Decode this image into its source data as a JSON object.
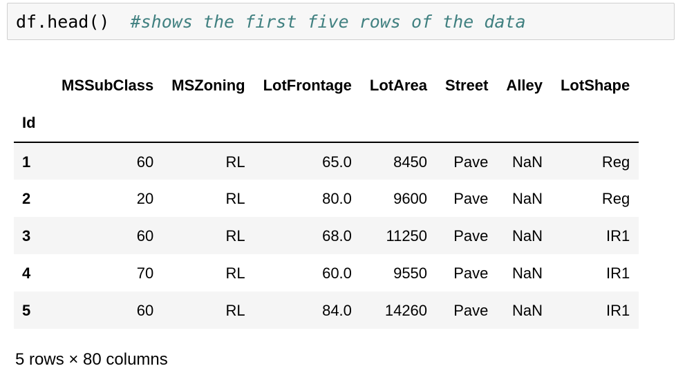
{
  "code_cell": {
    "code": "df.head()",
    "separator": "  ",
    "comment": "#shows the first five rows of the data"
  },
  "dataframe": {
    "columns": [
      "MSSubClass",
      "MSZoning",
      "LotFrontage",
      "LotArea",
      "Street",
      "Alley",
      "LotShape"
    ],
    "index_name": "Id",
    "rows": [
      {
        "index": "1",
        "cells": [
          "60",
          "RL",
          "65.0",
          "8450",
          "Pave",
          "NaN",
          "Reg"
        ]
      },
      {
        "index": "2",
        "cells": [
          "20",
          "RL",
          "80.0",
          "9600",
          "Pave",
          "NaN",
          "Reg"
        ]
      },
      {
        "index": "3",
        "cells": [
          "60",
          "RL",
          "68.0",
          "11250",
          "Pave",
          "NaN",
          "IR1"
        ]
      },
      {
        "index": "4",
        "cells": [
          "70",
          "RL",
          "60.0",
          "9550",
          "Pave",
          "NaN",
          "IR1"
        ]
      },
      {
        "index": "5",
        "cells": [
          "60",
          "RL",
          "84.0",
          "14260",
          "Pave",
          "NaN",
          "IR1"
        ]
      }
    ],
    "shape_text": "5 rows × 80 columns"
  },
  "colors": {
    "code_background": "#f7f7f7",
    "comment": "#408080",
    "striped_row": "#f5f5f5"
  }
}
